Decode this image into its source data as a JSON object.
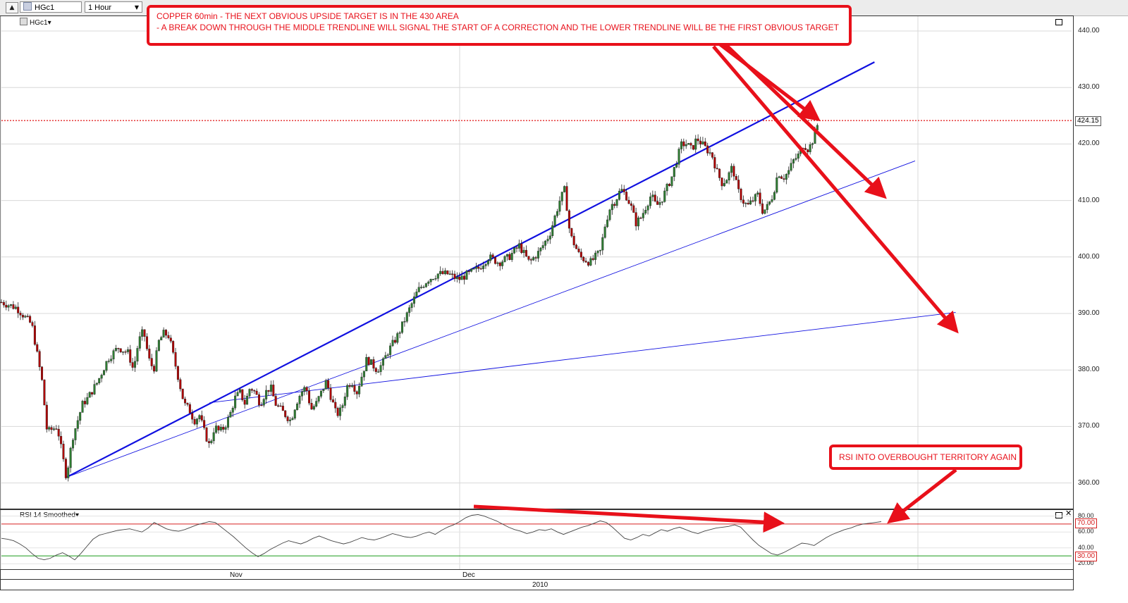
{
  "toolbar": {
    "symbol": "HGc1",
    "interval": "1 Hour"
  },
  "main_panel": {
    "symbol_label": "HGc1",
    "last_price_tag": "424.15"
  },
  "rsi_panel": {
    "label": "RSI 14 Smoothed",
    "overbought_tag": "70.00",
    "oversold_tag": "30.00"
  },
  "annotations": {
    "top_line1": "COPPER 60min - THE NEXT OBVIOUS UPSIDE TARGET IS IN THE 430 AREA",
    "top_line2": "- A BREAK DOWN THROUGH THE MIDDLE TRENDLINE WILL SIGNAL THE START OF A CORRECTION AND THE LOWER TRENDLINE WILL BE THE FIRST OBVIOUS TARGET",
    "rsi_note": "RSI INTO OVERBOUGHT TERRITORY AGAIN"
  },
  "colors": {
    "trendline": "#1010e0",
    "annotation": "#e8101a",
    "candle_up": "#2e7d32",
    "candle_down": "#b00000",
    "rsi_overbought": "#d62020",
    "rsi_oversold": "#1a9a1a"
  },
  "chart_data": [
    {
      "type": "candlestick",
      "interval": "60min",
      "ylim": [
        355,
        442
      ],
      "yticks": [
        "440.00",
        "430.00",
        "420.00",
        "410.00",
        "400.00",
        "390.00",
        "380.00",
        "370.00",
        "360.00"
      ],
      "yticks_values": [
        440,
        430,
        420,
        410,
        400,
        390,
        380,
        370,
        360
      ],
      "x_month_labels": [
        "Nov",
        "Dec"
      ],
      "x_year_label": "2010",
      "last_price": 424.15,
      "price_path": [
        [
          0,
          392
        ],
        [
          3,
          391
        ],
        [
          6,
          388
        ],
        [
          8,
          378
        ],
        [
          9,
          369
        ],
        [
          11,
          370
        ],
        [
          12,
          365
        ],
        [
          12.8,
          361
        ],
        [
          14,
          368
        ],
        [
          16,
          374
        ],
        [
          17,
          375
        ],
        [
          19,
          378
        ],
        [
          21,
          382
        ],
        [
          23,
          384
        ],
        [
          25,
          383
        ],
        [
          26,
          380
        ],
        [
          27,
          385
        ],
        [
          28,
          387
        ],
        [
          29,
          382
        ],
        [
          30,
          380
        ],
        [
          31,
          385
        ],
        [
          32,
          386.5
        ],
        [
          33,
          386
        ],
        [
          34,
          382
        ],
        [
          35,
          378
        ],
        [
          36,
          374
        ],
        [
          37,
          373
        ],
        [
          38,
          371
        ],
        [
          39,
          372
        ],
        [
          40,
          369
        ],
        [
          41,
          366.5
        ],
        [
          42,
          370
        ],
        [
          43,
          369
        ],
        [
          44,
          370
        ],
        [
          45,
          372
        ],
        [
          46,
          375
        ],
        [
          47,
          376
        ],
        [
          48,
          374
        ],
        [
          49,
          377
        ],
        [
          50,
          376
        ],
        [
          51,
          374
        ],
        [
          52,
          376
        ],
        [
          53,
          377
        ],
        [
          54,
          374
        ],
        [
          55,
          373
        ],
        [
          56,
          372
        ],
        [
          57,
          371
        ],
        [
          58,
          374
        ],
        [
          59,
          376
        ],
        [
          60,
          377
        ],
        [
          61,
          373
        ],
        [
          62,
          374
        ],
        [
          63,
          376
        ],
        [
          64,
          378
        ],
        [
          65,
          375
        ],
        [
          66,
          372
        ],
        [
          67,
          373
        ],
        [
          68,
          377
        ],
        [
          69,
          378
        ],
        [
          70,
          376
        ],
        [
          72,
          382
        ],
        [
          73,
          381
        ],
        [
          74,
          380
        ],
        [
          75,
          381
        ],
        [
          76,
          383
        ],
        [
          78,
          386
        ],
        [
          80,
          390
        ],
        [
          82,
          394
        ],
        [
          84,
          396
        ],
        [
          86,
          397
        ],
        [
          88,
          397
        ],
        [
          90,
          396
        ],
        [
          92,
          397
        ],
        [
          94,
          398
        ],
        [
          96,
          400
        ],
        [
          98,
          399
        ],
        [
          100,
          400
        ],
        [
          102,
          402
        ],
        [
          104,
          399
        ],
        [
          106,
          401
        ],
        [
          108,
          404
        ],
        [
          110,
          410
        ],
        [
          111,
          412
        ],
        [
          112,
          404
        ],
        [
          114,
          400
        ],
        [
          116,
          399
        ],
        [
          118,
          401
        ],
        [
          119,
          406
        ],
        [
          120,
          409
        ],
        [
          121,
          410
        ],
        [
          122,
          412
        ],
        [
          123,
          411
        ],
        [
          124,
          409
        ],
        [
          125,
          406
        ],
        [
          126,
          407
        ],
        [
          127,
          409
        ],
        [
          128,
          411
        ],
        [
          129,
          409
        ],
        [
          130,
          410
        ],
        [
          132,
          414
        ],
        [
          133,
          417
        ],
        [
          134,
          420
        ],
        [
          135,
          420
        ],
        [
          136,
          419
        ],
        [
          137,
          421
        ],
        [
          138,
          420
        ],
        [
          139,
          419
        ],
        [
          140,
          418
        ],
        [
          141,
          415
        ],
        [
          142,
          413
        ],
        [
          143,
          414
        ],
        [
          144,
          416
        ],
        [
          145,
          412
        ],
        [
          146,
          410
        ],
        [
          147,
          409
        ],
        [
          148,
          410
        ],
        [
          149,
          411
        ],
        [
          150,
          408
        ],
        [
          151,
          409
        ],
        [
          152,
          411
        ],
        [
          153,
          415
        ],
        [
          154,
          414
        ],
        [
          155,
          415
        ],
        [
          156,
          417
        ],
        [
          157,
          418
        ],
        [
          158,
          420
        ],
        [
          159,
          419
        ],
        [
          160,
          421
        ],
        [
          161,
          424.15
        ]
      ],
      "trendlines": [
        {
          "name": "upper",
          "from": [
            12.8,
            361
          ],
          "to": [
            172,
            434.5
          ]
        },
        {
          "name": "middle",
          "from": [
            12.8,
            361
          ],
          "to": [
            180,
            417
          ]
        },
        {
          "name": "lower",
          "from": [
            41,
            374.2
          ],
          "to": [
            188,
            390.2
          ]
        }
      ]
    },
    {
      "type": "line",
      "name": "RSI 14 Smoothed",
      "ylim": [
        15,
        85
      ],
      "yticks": [
        "80.00",
        "60.00",
        "40.00",
        "20.00"
      ],
      "yticks_values": [
        80,
        60,
        40,
        20
      ],
      "overbought": 70,
      "oversold": 30,
      "values": [
        52,
        51,
        49,
        45,
        40,
        33,
        27,
        25,
        27,
        31,
        34,
        30,
        25,
        33,
        42,
        51,
        56,
        58,
        60,
        62,
        63,
        64,
        62,
        60,
        65,
        72,
        68,
        64,
        62,
        61,
        63,
        66,
        69,
        71,
        73,
        72,
        66,
        60,
        54,
        47,
        40,
        34,
        29,
        33,
        38,
        42,
        46,
        49,
        47,
        45,
        48,
        52,
        55,
        52,
        49,
        47,
        45,
        47,
        50,
        53,
        51,
        50,
        52,
        55,
        58,
        56,
        54,
        53,
        55,
        58,
        60,
        57,
        62,
        66,
        69,
        73,
        78,
        81,
        82,
        80,
        77,
        74,
        70,
        66,
        63,
        61,
        58,
        60,
        63,
        62,
        64,
        60,
        57,
        60,
        63,
        66,
        68,
        71,
        74,
        72,
        66,
        59,
        52,
        50,
        53,
        57,
        55,
        59,
        63,
        61,
        64,
        66,
        63,
        60,
        58,
        61,
        63,
        65,
        66,
        67,
        69,
        66,
        58,
        50,
        43,
        38,
        33,
        31,
        34,
        38,
        42,
        46,
        45,
        43,
        48,
        53,
        57,
        60,
        63,
        65,
        68,
        70,
        71,
        72,
        73
      ]
    }
  ]
}
